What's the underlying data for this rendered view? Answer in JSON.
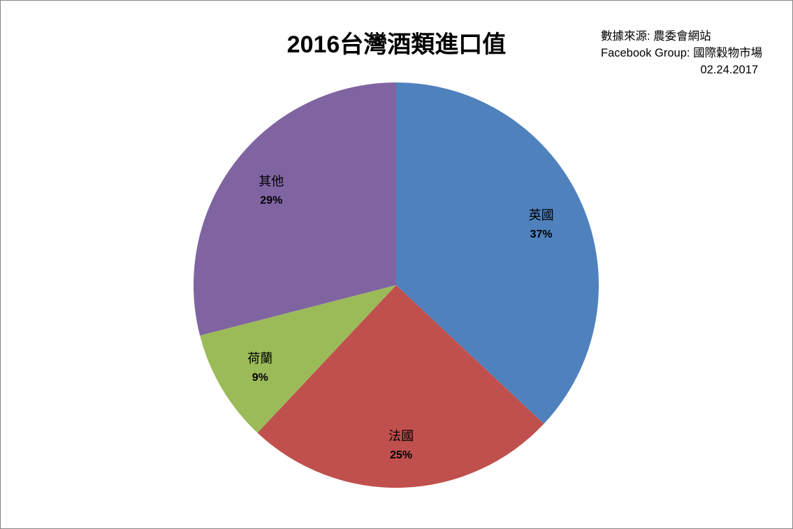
{
  "chart_data": {
    "type": "pie",
    "title": "2016台灣酒類進口值",
    "source_lines": [
      "數據來源: 農委會網站",
      "Facebook Group: 國際穀物市場",
      "02.24.2017"
    ],
    "start_angle_deg": 0,
    "direction": "clockwise",
    "slices": [
      {
        "label": "英國",
        "percent_label": "37%",
        "value": 37,
        "color": "#4F81BD"
      },
      {
        "label": "法國",
        "percent_label": "25%",
        "value": 25,
        "color": "#C0504D"
      },
      {
        "label": "荷蘭",
        "percent_label": "9%",
        "value": 9,
        "color": "#9BBB59"
      },
      {
        "label": "其他",
        "percent_label": "29%",
        "value": 29,
        "color": "#8064A2"
      }
    ]
  }
}
